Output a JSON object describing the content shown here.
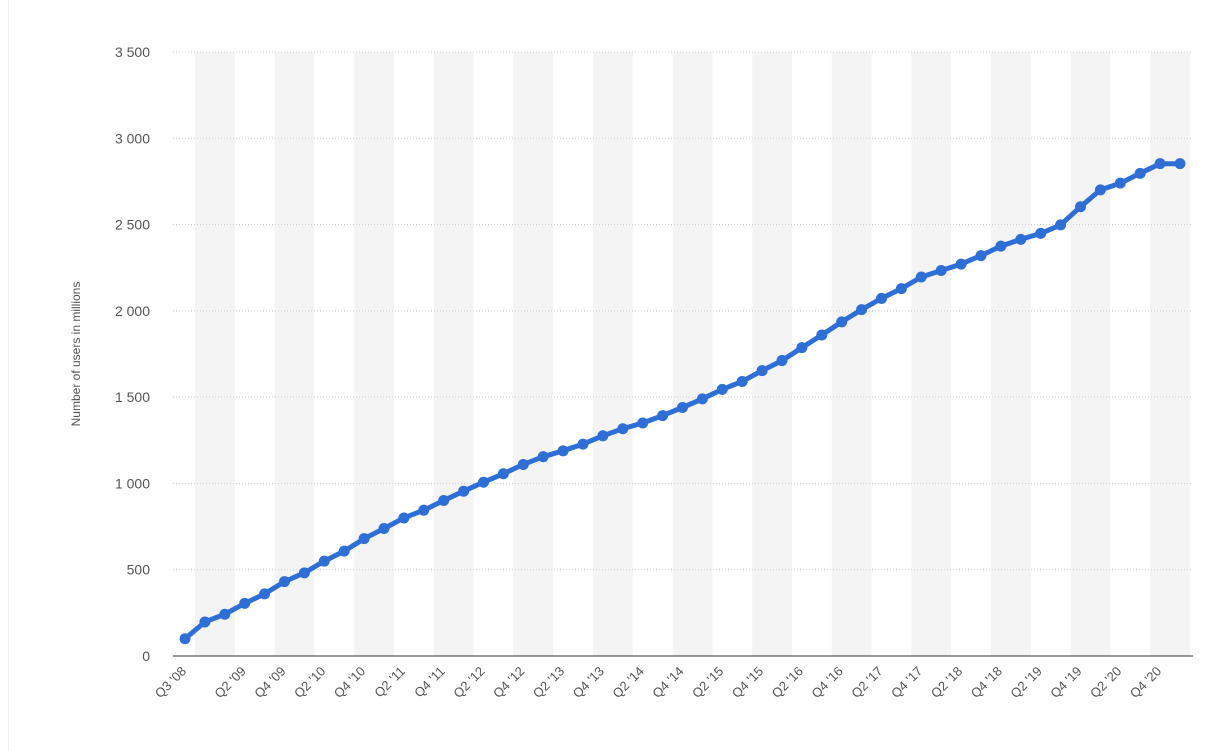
{
  "chart_data": {
    "type": "line",
    "ylabel": "Number of users in millions",
    "xlabel": "",
    "title": "",
    "ylim": [
      0,
      3500
    ],
    "yticks": [
      0,
      500,
      1000,
      1500,
      2000,
      2500,
      3000,
      3500
    ],
    "ytick_labels": [
      "0",
      "500",
      "1 000",
      "1 500",
      "2 000",
      "2 500",
      "3 000",
      "3 500"
    ],
    "grid": true,
    "categories": [
      "Q3 '08",
      "Q4 '08",
      "Q1 '09",
      "Q2 '09",
      "Q3 '09",
      "Q4 '09",
      "Q1 '10",
      "Q2 '10",
      "Q3 '10",
      "Q4 '10",
      "Q1 '11",
      "Q2 '11",
      "Q3 '11",
      "Q4 '11",
      "Q1 '12",
      "Q2 '12",
      "Q3 '12",
      "Q4 '12",
      "Q1 '13",
      "Q2 '13",
      "Q3 '13",
      "Q4 '13",
      "Q1 '14",
      "Q2 '14",
      "Q3 '14",
      "Q4 '14",
      "Q1 '15",
      "Q2 '15",
      "Q3 '15",
      "Q4 '15",
      "Q1 '16",
      "Q2 '16",
      "Q3 '16",
      "Q4 '16",
      "Q1 '17",
      "Q2 '17",
      "Q3 '17",
      "Q4 '17",
      "Q1 '18",
      "Q2 '18",
      "Q3 '18",
      "Q4 '18",
      "Q1 '19",
      "Q2 '19",
      "Q3 '19",
      "Q4 '19",
      "Q1 '20",
      "Q2 '20",
      "Q3 '20",
      "Q4 '20",
      "Q1 '21"
    ],
    "visible_x_labels": [
      "Q3 '08",
      "Q2 '09",
      "Q4 '09",
      "Q2 '10",
      "Q4 '10",
      "Q2 '11",
      "Q4 '11",
      "Q2 '12",
      "Q4 '12",
      "Q2 '13",
      "Q4 '13",
      "Q2 '14",
      "Q4 '14",
      "Q2 '15",
      "Q4 '15",
      "Q2 '16",
      "Q4 '16",
      "Q2 '17",
      "Q4 '17",
      "Q2 '18",
      "Q4 '18",
      "Q2 '19",
      "Q4 '19",
      "Q2 '20",
      "Q4 '20"
    ],
    "series": [
      {
        "values": [
          100,
          197,
          242,
          305,
          360,
          431,
          482,
          550,
          608,
          680,
          739,
          800,
          845,
          901,
          955,
          1007,
          1056,
          1110,
          1155,
          1189,
          1228,
          1276,
          1317,
          1350,
          1393,
          1440,
          1490,
          1545,
          1591,
          1654,
          1712,
          1787,
          1860,
          1936,
          2007,
          2072,
          2129,
          2196,
          2234,
          2271,
          2320,
          2375,
          2414,
          2449,
          2498,
          2603,
          2701,
          2740,
          2797,
          2853,
          2853
        ]
      }
    ],
    "colors": {
      "line": "#2d6fd6",
      "grid": "#cccccc",
      "band": "#f4f4f4",
      "axis": "#333333",
      "text": "#555555"
    }
  }
}
